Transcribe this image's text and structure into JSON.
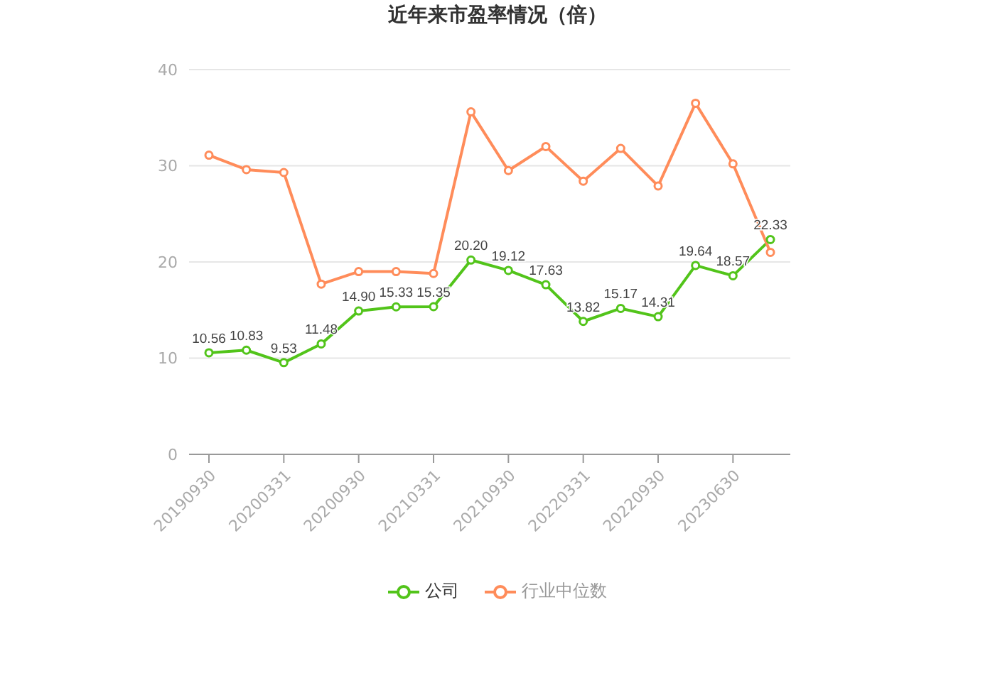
{
  "chart_data": {
    "type": "line",
    "title": "近年来市盈率情况（倍）",
    "categories": [
      "20190930",
      null,
      "20200331",
      null,
      "20200930",
      null,
      "20210331",
      null,
      "20210930",
      null,
      "20220331",
      null,
      "20220930",
      null,
      "20230630",
      null
    ],
    "series": [
      {
        "name": "公司",
        "color": "#52c41a",
        "values": [
          10.56,
          10.83,
          9.53,
          11.48,
          14.9,
          15.33,
          15.35,
          20.2,
          19.12,
          17.63,
          13.82,
          15.17,
          14.31,
          19.64,
          18.57,
          22.33
        ],
        "value_labels": [
          "10.56",
          "10.83",
          "9.53",
          "11.48",
          "14.90",
          "15.33",
          "15.35",
          "20.20",
          "19.12",
          "17.63",
          "13.82",
          "15.17",
          "14.31",
          "19.64",
          "18.57",
          "22.33"
        ]
      },
      {
        "name": "行业中位数",
        "color": "#ff8c5a",
        "values": [
          31.1,
          29.6,
          29.3,
          17.7,
          19.0,
          19.0,
          18.8,
          35.6,
          29.5,
          32.0,
          28.4,
          31.8,
          27.9,
          36.5,
          30.2,
          21.0
        ]
      }
    ],
    "ylim": [
      0,
      40
    ],
    "yticks": [
      0,
      10,
      20,
      30,
      40
    ],
    "grid": "y",
    "legend": "bottom",
    "marker": "circle",
    "line_style": "solid"
  }
}
